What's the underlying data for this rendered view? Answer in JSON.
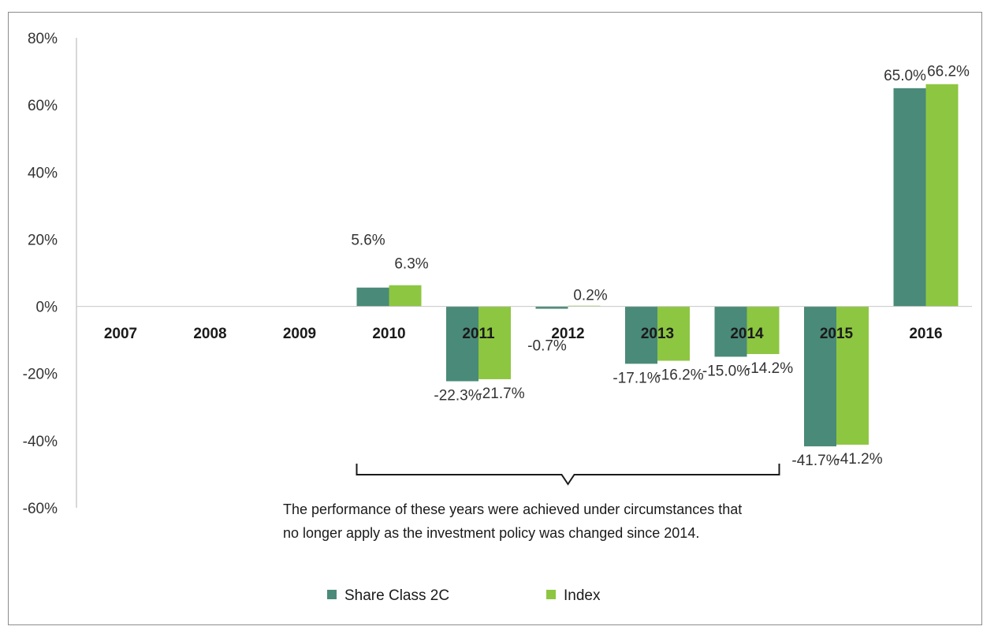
{
  "chart_data": {
    "type": "bar",
    "categories": [
      "2007",
      "2008",
      "2009",
      "2010",
      "2011",
      "2012",
      "2013",
      "2014",
      "2015",
      "2016"
    ],
    "series": [
      {
        "name": "Share Class 2C",
        "color": "#4a8a78",
        "values": [
          null,
          null,
          null,
          5.6,
          -22.3,
          -0.7,
          -17.1,
          -15.0,
          -41.7,
          65.0
        ],
        "labels": [
          "",
          "",
          "",
          "5.6%",
          "-22.3%",
          "-0.7%",
          "-17.1%",
          "-15.0%",
          "-41.7%",
          "65.0%"
        ]
      },
      {
        "name": "Index",
        "color": "#8dc641",
        "values": [
          null,
          null,
          null,
          6.3,
          -21.7,
          0.2,
          -16.2,
          -14.2,
          -41.2,
          66.2
        ],
        "labels": [
          "",
          "",
          "",
          "6.3%",
          "-21.7%",
          "0.2%",
          "-16.2%",
          "-14.2%",
          "-41.2%",
          "66.2%"
        ]
      }
    ],
    "ylim": [
      -60,
      80
    ],
    "yticks": [
      "80%",
      "60%",
      "40%",
      "20%",
      "0%",
      "-20%",
      "-40%",
      "-60%"
    ],
    "grid": false,
    "legend_position": "bottom-center",
    "annotation": {
      "spans": [
        "2010",
        "2014"
      ],
      "lines": [
        "The performance of these years were achieved under circumstances that",
        "no longer apply as the investment policy was changed since 2014."
      ]
    }
  }
}
